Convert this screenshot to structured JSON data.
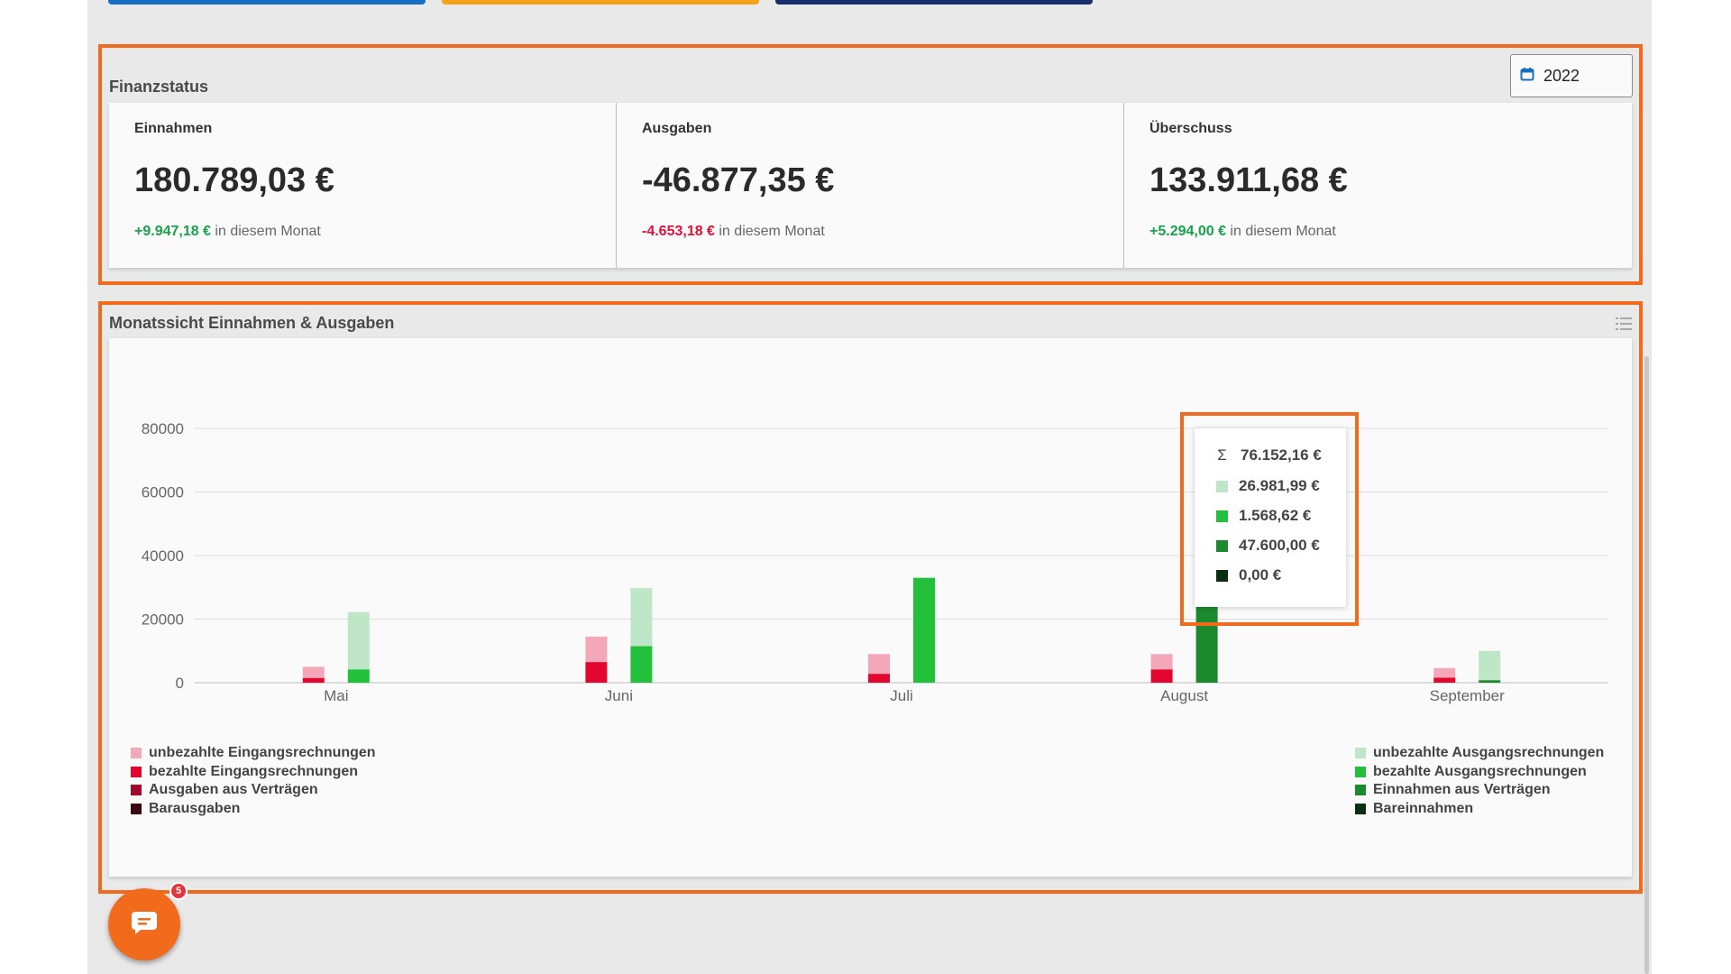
{
  "finance_status": {
    "title": "Finanzstatus",
    "year": "2022",
    "cards": [
      {
        "label": "Einnahmen",
        "value": "180.789,03 €",
        "delta": "+9.947,18 €",
        "delta_suffix": " in diesem Monat"
      },
      {
        "label": "Ausgaben",
        "value": "-46.877,35 €",
        "delta": "-4.653,18 €",
        "delta_suffix": " in diesem Monat"
      },
      {
        "label": "Überschuss",
        "value": "133.911,68 €",
        "delta": "+5.294,00 €",
        "delta_suffix": " in diesem Monat"
      }
    ]
  },
  "monthly_view": {
    "title": "Monatssicht Einnahmen & Ausgaben",
    "legend_left": [
      {
        "label": "unbezahlte Eingangsrechnungen",
        "color": "#f4a7b9"
      },
      {
        "label": "bezahlte Eingangsrechnungen",
        "color": "#e3062e"
      },
      {
        "label": "Ausgaben aus Verträgen",
        "color": "#a10a2c"
      },
      {
        "label": "Barausgaben",
        "color": "#3a0712"
      }
    ],
    "legend_right": [
      {
        "label": "unbezahlte Ausgangsrechnungen",
        "color": "#bfe6c6"
      },
      {
        "label": "bezahlte Ausgangsrechnungen",
        "color": "#22c03b"
      },
      {
        "label": "Einnahmen aus Verträgen",
        "color": "#1b8a2e"
      },
      {
        "label": "Bareinnahmen",
        "color": "#0b2f12"
      }
    ],
    "tooltip": {
      "sum_symbol": "Σ",
      "sum": "76.152,16 €",
      "items": [
        {
          "value": "26.981,99 €",
          "color": "#bfe6c6"
        },
        {
          "value": "1.568,62 €",
          "color": "#22c03b"
        },
        {
          "value": "47.600,00 €",
          "color": "#1b8a2e"
        },
        {
          "value": "0,00 €",
          "color": "#0b2f12"
        }
      ]
    }
  },
  "chart_data": {
    "type": "bar",
    "categories": [
      "Mai",
      "Juni",
      "Juli",
      "August",
      "September"
    ],
    "ylim": [
      0,
      80000
    ],
    "yticks": [
      0,
      20000,
      40000,
      60000,
      80000
    ],
    "grid": true,
    "legend": "bottom",
    "stacks": [
      {
        "side": "expenses",
        "series": [
          {
            "name": "bezahlte Eingangsrechnungen",
            "color": "#e3062e",
            "values": [
              1500,
              6500,
              2800,
              4200,
              1600
            ]
          },
          {
            "name": "unbezahlte Eingangsrechnungen",
            "color": "#f4a7b9",
            "values": [
              3500,
              8000,
              6200,
              4800,
              3000
            ]
          },
          {
            "name": "Ausgaben aus Verträgen",
            "color": "#a10a2c",
            "values": [
              0,
              0,
              0,
              0,
              0
            ]
          },
          {
            "name": "Barausgaben",
            "color": "#3a0712",
            "values": [
              0,
              0,
              0,
              0,
              0
            ]
          }
        ]
      },
      {
        "side": "income",
        "series": [
          {
            "name": "Bareinnahmen",
            "color": "#0b2f12",
            "values": [
              0,
              0,
              0,
              0,
              0
            ]
          },
          {
            "name": "Einnahmen aus Verträgen",
            "color": "#1b8a2e",
            "values": [
              0,
              0,
              0,
              47600,
              800
            ]
          },
          {
            "name": "bezahlte Ausgangsrechnungen",
            "color": "#22c03b",
            "values": [
              4200,
              11500,
              33000,
              1568.62,
              0
            ]
          },
          {
            "name": "unbezahlte Ausgangsrechnungen",
            "color": "#bfe6c6",
            "values": [
              18000,
              18300,
              0,
              26981.99,
              9200
            ]
          }
        ]
      }
    ]
  },
  "chat": {
    "badge": "5"
  }
}
